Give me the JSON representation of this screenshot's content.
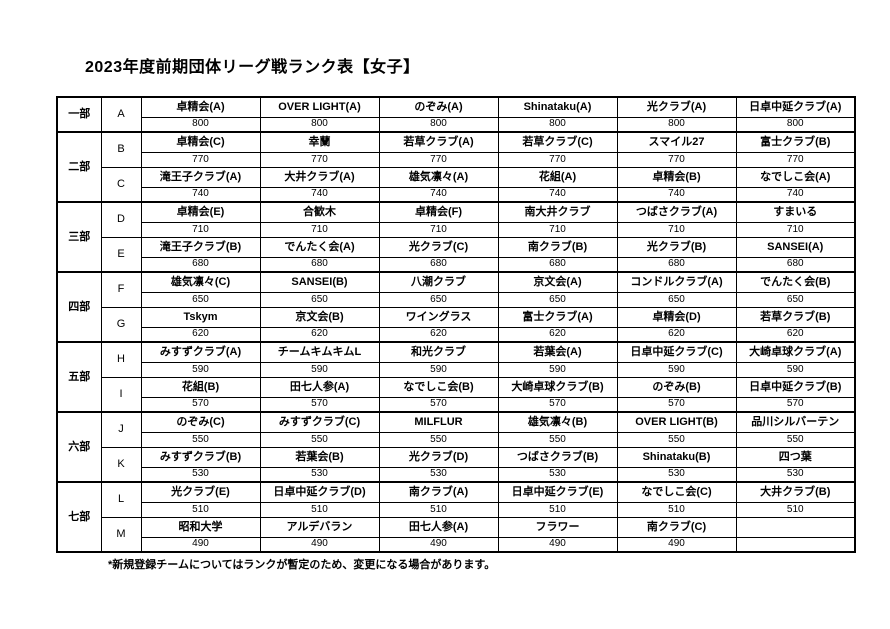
{
  "title": "2023年度前期団体リーグ戦ランク表【女子】",
  "footnote": "*新規登録チームについてはランクが暫定のため、変更になる場合があります。",
  "table": {
    "divisions": [
      {
        "label": "一部",
        "letters": [
          "A"
        ]
      },
      {
        "label": "二部",
        "letters": [
          "B",
          "C"
        ]
      },
      {
        "label": "三部",
        "letters": [
          "D",
          "E"
        ]
      },
      {
        "label": "四部",
        "letters": [
          "F",
          "G"
        ]
      },
      {
        "label": "五部",
        "letters": [
          "H",
          "I"
        ]
      },
      {
        "label": "六部",
        "letters": [
          "J",
          "K"
        ]
      },
      {
        "label": "七部",
        "letters": [
          "L",
          "M"
        ]
      }
    ],
    "rows": [
      {
        "letter": "A",
        "teams": [
          "卓精会(A)",
          "OVER LIGHT(A)",
          "のぞみ(A)",
          "Shinataku(A)",
          "光クラブ(A)",
          "日卓中延クラブ(A)"
        ],
        "scores": [
          "800",
          "800",
          "800",
          "800",
          "800",
          "800"
        ]
      },
      {
        "letter": "B",
        "teams": [
          "卓精会(C)",
          "幸蘭",
          "若草クラブ(A)",
          "若草クラブ(C)",
          "スマイル27",
          "富士クラブ(B)"
        ],
        "scores": [
          "770",
          "770",
          "770",
          "770",
          "770",
          "770"
        ]
      },
      {
        "letter": "C",
        "teams": [
          "滝王子クラブ(A)",
          "大井クラブ(A)",
          "雄気凛々(A)",
          "花組(A)",
          "卓精会(B)",
          "なでしこ会(A)"
        ],
        "scores": [
          "740",
          "740",
          "740",
          "740",
          "740",
          "740"
        ]
      },
      {
        "letter": "D",
        "teams": [
          "卓精会(E)",
          "合歓木",
          "卓精会(F)",
          "南大井クラブ",
          "つばさクラブ(A)",
          "すまいる"
        ],
        "scores": [
          "710",
          "710",
          "710",
          "710",
          "710",
          "710"
        ]
      },
      {
        "letter": "E",
        "teams": [
          "滝王子クラブ(B)",
          "でんたく会(A)",
          "光クラブ(C)",
          "南クラブ(B)",
          "光クラブ(B)",
          "SANSEI(A)"
        ],
        "scores": [
          "680",
          "680",
          "680",
          "680",
          "680",
          "680"
        ]
      },
      {
        "letter": "F",
        "teams": [
          "雄気凛々(C)",
          "SANSEI(B)",
          "八潮クラブ",
          "京文会(A)",
          "コンドルクラブ(A)",
          "でんたく会(B)"
        ],
        "scores": [
          "650",
          "650",
          "650",
          "650",
          "650",
          "650"
        ]
      },
      {
        "letter": "G",
        "teams": [
          "Tskym",
          "京文会(B)",
          "ワイングラス",
          "富士クラブ(A)",
          "卓精会(D)",
          "若草クラブ(B)"
        ],
        "scores": [
          "620",
          "620",
          "620",
          "620",
          "620",
          "620"
        ]
      },
      {
        "letter": "H",
        "teams": [
          "みすずクラブ(A)",
          "チームキムキムL",
          "和光クラブ",
          "若葉会(A)",
          "日卓中延クラブ(C)",
          "大崎卓球クラブ(A)"
        ],
        "scores": [
          "590",
          "590",
          "590",
          "590",
          "590",
          "590"
        ]
      },
      {
        "letter": "I",
        "teams": [
          "花組(B)",
          "田七人参(A)",
          "なでしこ会(B)",
          "大崎卓球クラブ(B)",
          "のぞみ(B)",
          "日卓中延クラブ(B)"
        ],
        "scores": [
          "570",
          "570",
          "570",
          "570",
          "570",
          "570"
        ]
      },
      {
        "letter": "J",
        "teams": [
          "のぞみ(C)",
          "みすずクラブ(C)",
          "MILFLUR",
          "雄気凛々(B)",
          "OVER LIGHT(B)",
          "品川シルバーテン"
        ],
        "scores": [
          "550",
          "550",
          "550",
          "550",
          "550",
          "550"
        ]
      },
      {
        "letter": "K",
        "teams": [
          "みすずクラブ(B)",
          "若葉会(B)",
          "光クラブ(D)",
          "つばさクラブ(B)",
          "Shinataku(B)",
          "四つ葉"
        ],
        "scores": [
          "530",
          "530",
          "530",
          "530",
          "530",
          "530"
        ]
      },
      {
        "letter": "L",
        "teams": [
          "光クラブ(E)",
          "日卓中延クラブ(D)",
          "南クラブ(A)",
          "日卓中延クラブ(E)",
          "なでしこ会(C)",
          "大井クラブ(B)"
        ],
        "scores": [
          "510",
          "510",
          "510",
          "510",
          "510",
          "510"
        ]
      },
      {
        "letter": "M",
        "teams": [
          "昭和大学",
          "アルデバラン",
          "田七人参(A)",
          "フラワー",
          "南クラブ(C)",
          ""
        ],
        "scores": [
          "490",
          "490",
          "490",
          "490",
          "490",
          ""
        ]
      }
    ]
  }
}
